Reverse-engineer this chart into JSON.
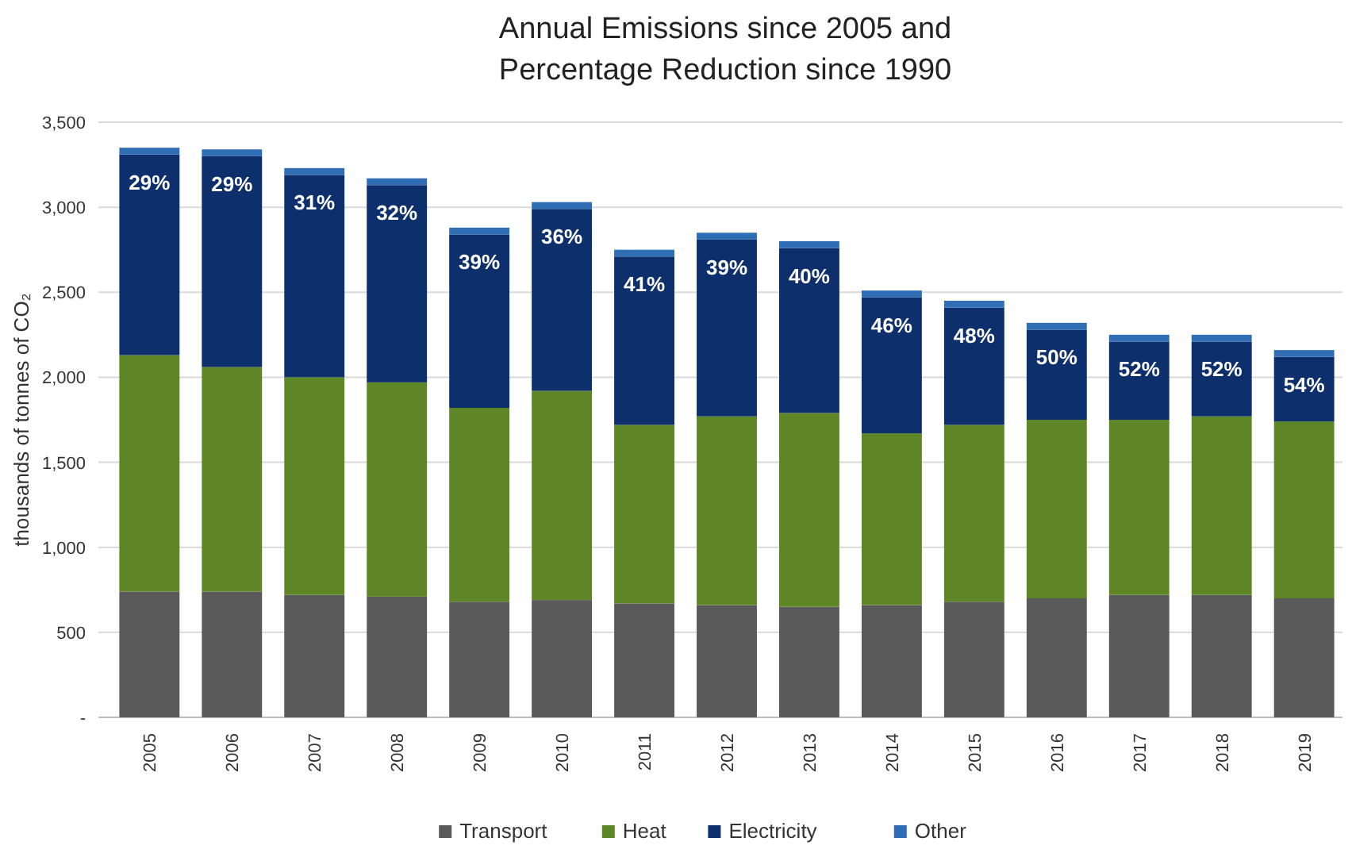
{
  "chart_data": {
    "type": "bar",
    "stacked": true,
    "title": "Annual Emissions since 2005 and\nPercentage Reduction since 1990",
    "ylabel": "thousands of tonnes of CO₂",
    "categories": [
      "2005",
      "2006",
      "2007",
      "2008",
      "2009",
      "2010",
      "2011",
      "2012",
      "2013",
      "2014",
      "2015",
      "2016",
      "2017",
      "2018",
      "2019"
    ],
    "series": [
      {
        "name": "Transport",
        "color": "#595959",
        "values": [
          740,
          740,
          720,
          710,
          680,
          690,
          670,
          660,
          650,
          660,
          680,
          700,
          720,
          720,
          700
        ]
      },
      {
        "name": "Heat",
        "color": "#5e8526",
        "values": [
          1390,
          1320,
          1280,
          1260,
          1140,
          1230,
          1050,
          1110,
          1140,
          1010,
          1040,
          1050,
          1030,
          1050,
          1040
        ]
      },
      {
        "name": "Electricity",
        "color": "#0d2f6b",
        "values": [
          1180,
          1240,
          1190,
          1160,
          1020,
          1070,
          990,
          1040,
          970,
          800,
          690,
          530,
          460,
          440,
          380
        ]
      },
      {
        "name": "Other",
        "color": "#2f6db5",
        "values": [
          40,
          40,
          40,
          40,
          40,
          40,
          40,
          40,
          40,
          40,
          40,
          40,
          40,
          40,
          40
        ]
      }
    ],
    "ylim": [
      0,
      3500
    ],
    "yticks": [
      {
        "value": 0,
        "label": "-"
      },
      {
        "value": 500,
        "label": "500"
      },
      {
        "value": 1000,
        "label": "1,000"
      },
      {
        "value": 1500,
        "label": "1,500"
      },
      {
        "value": 2000,
        "label": "2,000"
      },
      {
        "value": 2500,
        "label": "2,500"
      },
      {
        "value": 3000,
        "label": "3,000"
      },
      {
        "value": 3500,
        "label": "3,500"
      }
    ],
    "grid": "y",
    "legend": "bottom",
    "annotations": [
      "29%",
      "29%",
      "31%",
      "32%",
      "39%",
      "36%",
      "41%",
      "39%",
      "40%",
      "46%",
      "48%",
      "50%",
      "52%",
      "52%",
      "54%"
    ]
  }
}
